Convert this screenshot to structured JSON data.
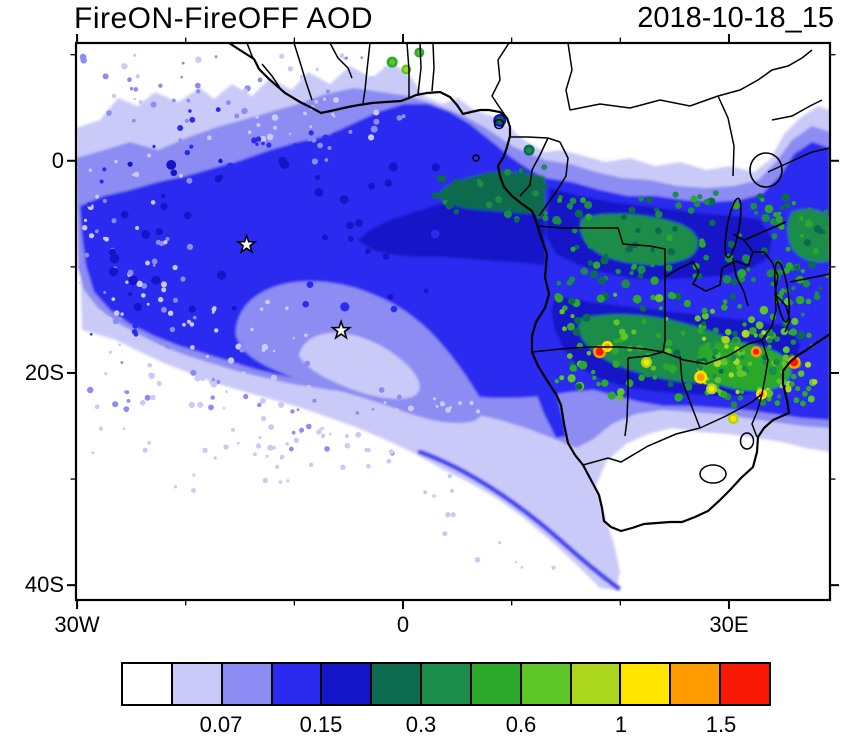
{
  "header": {
    "title": "FireON-FireOFF AOD",
    "datetime": "2018-10-18_15"
  },
  "chart_data": {
    "type": "heatmap",
    "subtype": "filled_contour_map",
    "title": "FireON-FireOFF AOD",
    "time_label": "2018-10-18_15",
    "variable": "Aerosol optical depth difference (FireON minus FireOFF)",
    "geo": {
      "lon_range": [
        -30.1,
        39.3
      ],
      "lat_range": [
        11.1,
        -41.4
      ]
    },
    "axes": {
      "x_ticks": [
        {
          "label": "30W",
          "lon": -30
        },
        {
          "label": "0",
          "lon": 0
        },
        {
          "label": "30E",
          "lon": 30
        }
      ],
      "y_ticks": [
        {
          "label": "0",
          "lat": 0
        },
        {
          "label": "20S",
          "lat": -20
        },
        {
          "label": "40S",
          "lat": -40
        }
      ],
      "minor_tick_step_deg": 10
    },
    "colorbar": {
      "cells": 13,
      "colors": [
        "#ffffff",
        "#cacaf8",
        "#8c8cf2",
        "#2b2bf0",
        "#1414c8",
        "#0c6b4e",
        "#1b8c4a",
        "#2ca82c",
        "#5ec529",
        "#abd81e",
        "#ffe400",
        "#ff9c00",
        "#f71905"
      ],
      "tick_labels": [
        {
          "label": "0.07",
          "boundary": 2
        },
        {
          "label": "0.15",
          "boundary": 4
        },
        {
          "label": "0.3",
          "boundary": 6
        },
        {
          "label": "0.6",
          "boundary": 8
        },
        {
          "label": "1",
          "boundary": 10
        },
        {
          "label": "1.5",
          "boundary": 12
        }
      ]
    },
    "markers": [
      {
        "type": "star",
        "lon": -14.4,
        "lat": -7.9
      },
      {
        "type": "star",
        "lon": -5.7,
        "lat": -16.0
      }
    ],
    "hotspots": [
      {
        "lon": 18.1,
        "lat": -18.0,
        "level": 12,
        "r": 4
      },
      {
        "lon": 18.8,
        "lat": -17.5,
        "level": 11,
        "r": 3
      },
      {
        "lon": 22.4,
        "lat": -19.0,
        "level": 10,
        "r": 3
      },
      {
        "lon": 27.4,
        "lat": -20.4,
        "level": 11,
        "r": 4
      },
      {
        "lon": 28.4,
        "lat": -21.5,
        "level": 10,
        "r": 3
      },
      {
        "lon": 32.5,
        "lat": -18.0,
        "level": 12,
        "r": 3
      },
      {
        "lon": 33.0,
        "lat": -22.0,
        "level": 11,
        "r": 3
      },
      {
        "lon": 36.0,
        "lat": -19.0,
        "level": 12,
        "r": 4
      },
      {
        "lon": 30.4,
        "lat": -24.3,
        "level": 10,
        "r": 3
      },
      {
        "lon": -1.0,
        "lat": 9.3,
        "level": 8,
        "r": 3
      },
      {
        "lon": 0.3,
        "lat": 8.6,
        "level": 9,
        "r": 2.5
      },
      {
        "lon": 1.5,
        "lat": 10.2,
        "level": 8,
        "r": 2.5
      },
      {
        "lon": 8.9,
        "lat": 3.8,
        "level": 5,
        "r": 4
      },
      {
        "lon": 11.6,
        "lat": 1.0,
        "level": 6,
        "r": 3
      },
      {
        "lon": 38.0,
        "lat": -8.5,
        "level": 7,
        "r": 3
      }
    ],
    "summary": "Large positive AOD difference plume (0.1-0.3) spreading west from the Angola/Congo coast over the southeast Atlantic toward 30W between the equator and 20S; higher values (0.3-1.5, greens to reds) over land fire regions of DRC, Angola, Zambia, Zimbabwe and Mozambique; two star markers over the Atlantic; lighter region southwest of the plume core."
  }
}
